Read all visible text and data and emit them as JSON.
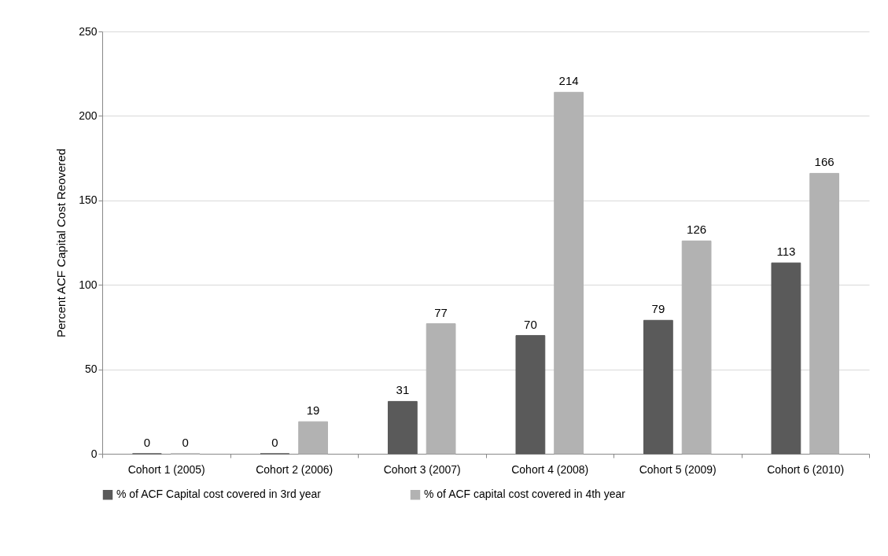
{
  "chart_data": {
    "type": "bar",
    "ylabel": "Percent ACF Capital Cost Reovered",
    "categories": [
      "Cohort 1 (2005)",
      "Cohort 2 (2006)",
      "Cohort 3 (2007)",
      "Cohort 4 (2008)",
      "Cohort 5 (2009)",
      "Cohort 6 (2010)"
    ],
    "series": [
      {
        "name": "% of ACF Capital cost covered in 3rd year",
        "color": "#5a5a5a",
        "values": [
          0,
          0,
          31,
          70,
          79,
          113
        ]
      },
      {
        "name": "% of ACF capital cost covered in 4th year",
        "color": "#b2b2b2",
        "values": [
          0,
          19,
          77,
          214,
          126,
          166
        ]
      }
    ],
    "ylim": [
      0,
      250
    ],
    "yticks": [
      0,
      50,
      100,
      150,
      200,
      250
    ],
    "grid": "y",
    "legend": "bottom",
    "data_labels": true
  }
}
